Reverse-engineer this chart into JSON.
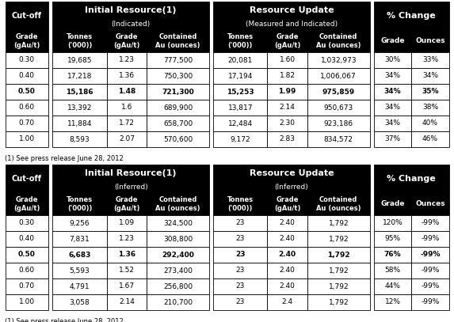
{
  "table1": {
    "sec1_title": "Initial Resource",
    "sec1_sup": "(1)",
    "sec1_sub": "(Indicated)",
    "sec2_title": "Resource Update",
    "sec2_sub": "(Measured and Indicated)",
    "sec3_title": "% Change",
    "rows": [
      [
        "0.30",
        "19,685",
        "1.23",
        "777,500",
        "20,081",
        "1.60",
        "1,032,973",
        "30%",
        "33%"
      ],
      [
        "0.40",
        "17,218",
        "1.36",
        "750,300",
        "17,194",
        "1.82",
        "1,006,067",
        "34%",
        "34%"
      ],
      [
        "0.50",
        "15,186",
        "1.48",
        "721,300",
        "15,253",
        "1.99",
        "975,859",
        "34%",
        "35%"
      ],
      [
        "0.60",
        "13,392",
        "1.6",
        "689,900",
        "13,817",
        "2.14",
        "950,673",
        "34%",
        "38%"
      ],
      [
        "0.70",
        "11,884",
        "1.72",
        "658,700",
        "12,484",
        "2.30",
        "923,186",
        "34%",
        "40%"
      ],
      [
        "1.00",
        "8,593",
        "2.07",
        "570,600",
        "9,172",
        "2.83",
        "834,572",
        "37%",
        "46%"
      ]
    ],
    "bold_rows": [
      2
    ],
    "footnote": "(1) See press release June 28, 2012"
  },
  "table2": {
    "sec1_title": "Initial Resource",
    "sec1_sup": "(1)",
    "sec1_sub": "(Inferred)",
    "sec2_title": "Resource Update",
    "sec2_sub": "(Inferred)",
    "sec3_title": "% Change",
    "rows": [
      [
        "0.30",
        "9,256",
        "1.09",
        "324,500",
        "23",
        "2.40",
        "1,792",
        "120%",
        "-99%"
      ],
      [
        "0.40",
        "7,831",
        "1.23",
        "308,800",
        "23",
        "2.40",
        "1,792",
        "95%",
        "-99%"
      ],
      [
        "0.50",
        "6,683",
        "1.36",
        "292,400",
        "23",
        "2.40",
        "1,792",
        "76%",
        "-99%"
      ],
      [
        "0.60",
        "5,593",
        "1.52",
        "273,400",
        "23",
        "2.40",
        "1,792",
        "58%",
        "-99%"
      ],
      [
        "0.70",
        "4,791",
        "1.67",
        "256,800",
        "23",
        "2.40",
        "1,792",
        "44%",
        "-99%"
      ],
      [
        "1.00",
        "3,058",
        "2.14",
        "210,700",
        "23",
        "2.4",
        "1,792",
        "12%",
        "-99%"
      ]
    ],
    "bold_rows": [
      2
    ],
    "footnote": "(1) See press release June 28, 2012"
  },
  "black": "#000000",
  "white": "#ffffff"
}
